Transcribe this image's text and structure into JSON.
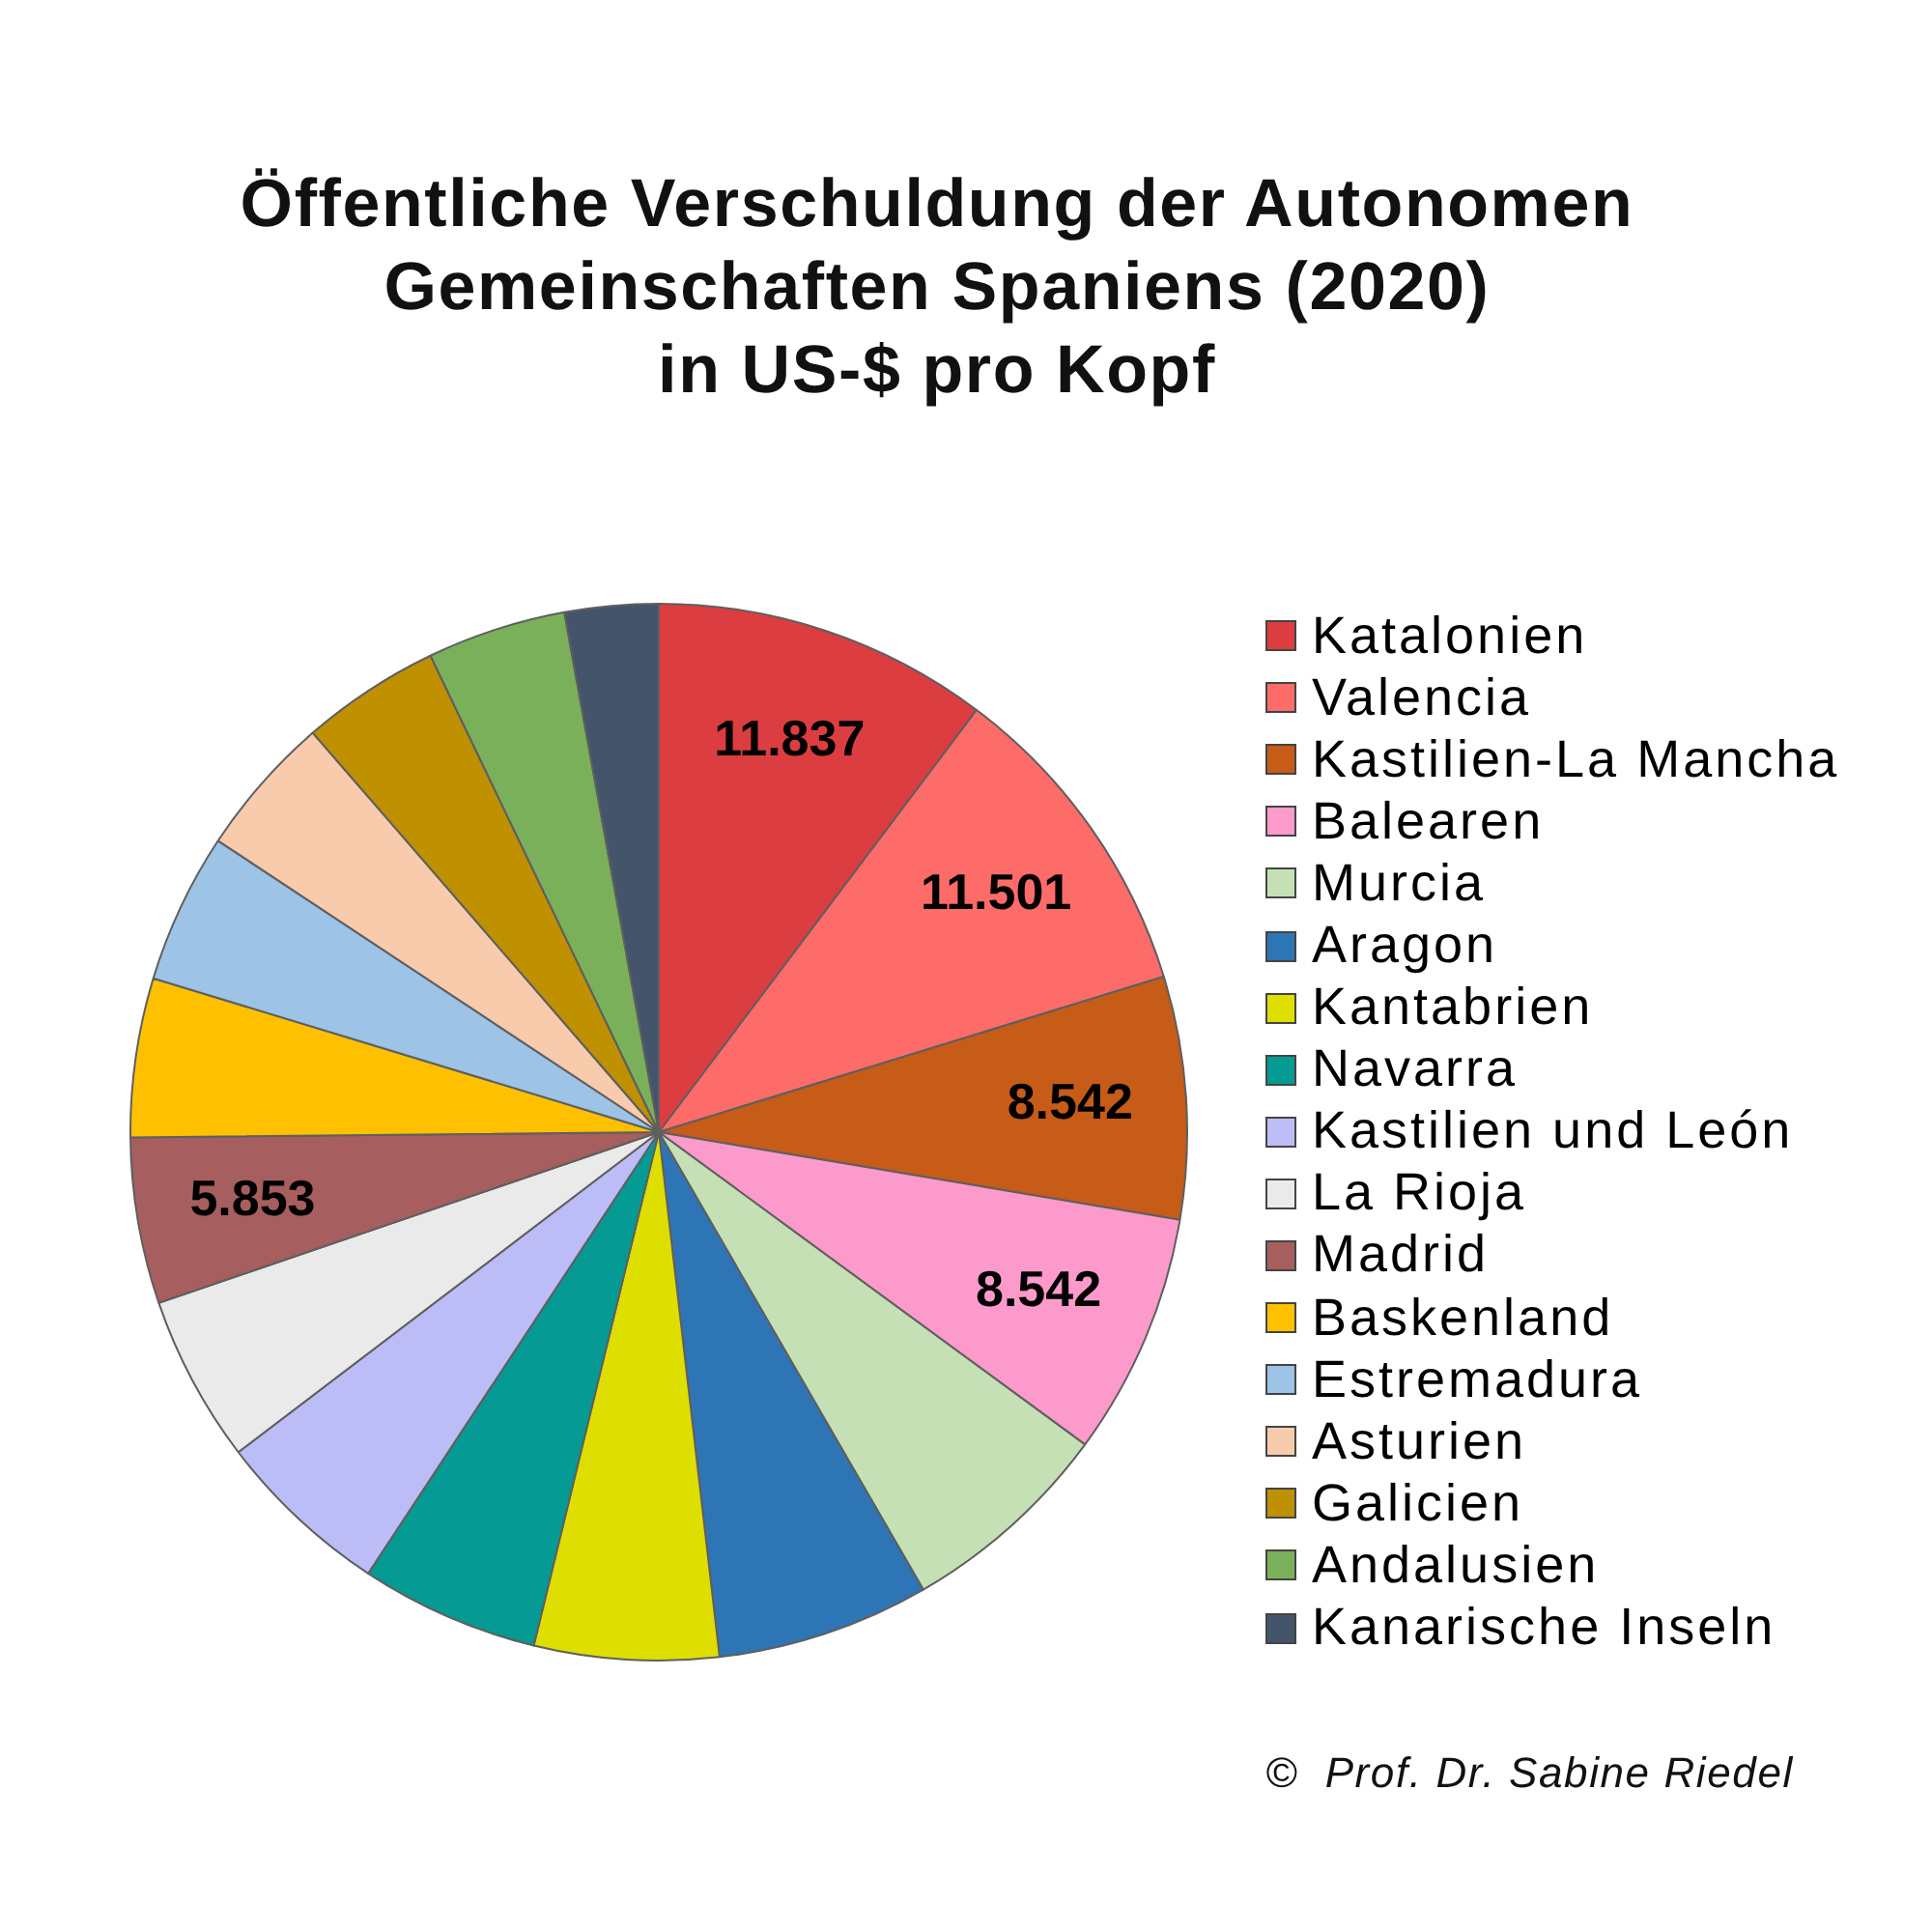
{
  "chart_data": {
    "type": "pie",
    "title": "Öffentliche Verschuldung der Autonomen\nGemeinschaften Spaniens (2020)\nin US-$ pro Kopf",
    "categories": [
      "Katalonien",
      "Valencia",
      "Kastilien-La Mancha",
      "Balearen",
      "Murcia",
      "Aragon",
      "Kantabrien",
      "Navarra",
      "Kastilien und León",
      "La Rioja",
      "Madrid",
      "Baskenland",
      "Estremadura",
      "Asturien",
      "Galicien",
      "Andalusien",
      "Kanarische Inseln"
    ],
    "values": [
      11837,
      11501,
      8542,
      8542,
      7600,
      7500,
      6500,
      6300,
      6200,
      5900,
      5853,
      5600,
      5300,
      5000,
      4900,
      4900,
      3300
    ],
    "colors": [
      "#dc3d41",
      "#fe6c6a",
      "#c65c18",
      "#fd9acc",
      "#c5e0b4",
      "#2e75b6",
      "#dede00",
      "#069a94",
      "#bcbcf7",
      "#e9eae9",
      "#a65e5f",
      "#ffc000",
      "#9dc3e6",
      "#f8cbad",
      "#bf9000",
      "#7bb05a",
      "#44546a"
    ],
    "value_labels": [
      "11.837",
      "11.501",
      "8.542",
      "8.542",
      null,
      null,
      null,
      null,
      null,
      null,
      "5.853",
      null,
      null,
      null,
      null,
      null,
      null
    ],
    "legend": "right",
    "annotations": [
      "©  Prof. Dr. Sabine Riedel"
    ]
  }
}
